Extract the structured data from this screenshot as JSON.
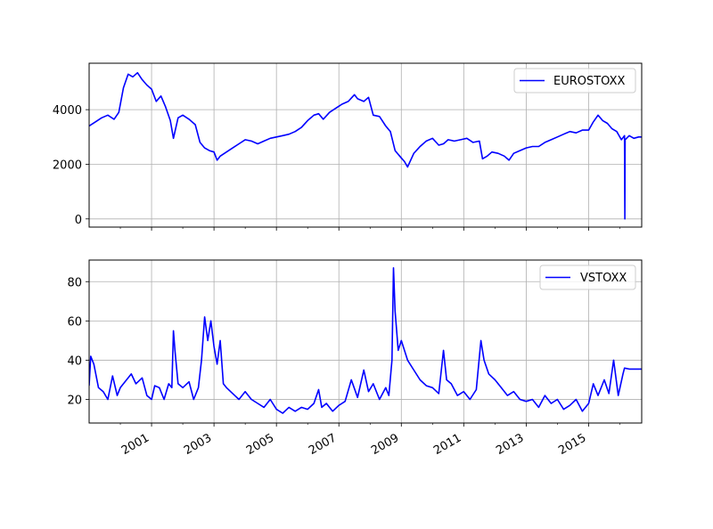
{
  "chart_data": [
    {
      "type": "line",
      "title": "",
      "xlabel": "",
      "ylabel": "",
      "legend": [
        "EUROSTOXX"
      ],
      "legend_position": "upper right",
      "grid": true,
      "line_color": "#0000ff",
      "ylim": [
        -300,
        5700
      ],
      "xlim": [
        1999.0,
        2016.7
      ],
      "yticks": [
        0,
        2000,
        4000
      ],
      "ytick_labels": [
        "0",
        "2000",
        "4000"
      ],
      "series": [
        {
          "name": "EUROSTOXX",
          "x": [
            1999.0,
            1999.2,
            1999.4,
            1999.6,
            1999.8,
            1999.95,
            2000.1,
            2000.25,
            2000.4,
            2000.55,
            2000.7,
            2000.85,
            2001.0,
            2001.15,
            2001.3,
            2001.45,
            2001.6,
            2001.7,
            2001.85,
            2002.0,
            2002.2,
            2002.4,
            2002.55,
            2002.7,
            2002.85,
            2003.0,
            2003.1,
            2003.2,
            2003.4,
            2003.6,
            2003.8,
            2004.0,
            2004.2,
            2004.4,
            2004.6,
            2004.8,
            2005.0,
            2005.2,
            2005.4,
            2005.6,
            2005.8,
            2006.0,
            2006.2,
            2006.35,
            2006.5,
            2006.7,
            2006.9,
            2007.1,
            2007.3,
            2007.5,
            2007.6,
            2007.8,
            2007.95,
            2008.1,
            2008.3,
            2008.5,
            2008.65,
            2008.8,
            2008.95,
            2009.1,
            2009.2,
            2009.4,
            2009.6,
            2009.8,
            2010.0,
            2010.2,
            2010.35,
            2010.5,
            2010.7,
            2010.9,
            2011.1,
            2011.3,
            2011.5,
            2011.6,
            2011.75,
            2011.9,
            2012.1,
            2012.3,
            2012.45,
            2012.6,
            2012.8,
            2013.0,
            2013.2,
            2013.4,
            2013.6,
            2013.8,
            2014.0,
            2014.2,
            2014.4,
            2014.6,
            2014.8,
            2015.0,
            2015.15,
            2015.3,
            2015.45,
            2015.6,
            2015.75,
            2015.9,
            2016.05,
            2016.15,
            2016.16,
            2016.17,
            2016.3,
            2016.45,
            2016.6,
            2016.7
          ],
          "y": [
            3400,
            3550,
            3700,
            3800,
            3650,
            3900,
            4800,
            5300,
            5200,
            5350,
            5100,
            4900,
            4750,
            4300,
            4500,
            4100,
            3600,
            2950,
            3700,
            3800,
            3650,
            3450,
            2800,
            2600,
            2500,
            2450,
            2150,
            2300,
            2450,
            2600,
            2750,
            2900,
            2850,
            2750,
            2850,
            2950,
            3000,
            3050,
            3100,
            3200,
            3350,
            3600,
            3800,
            3850,
            3650,
            3900,
            4050,
            4200,
            4300,
            4550,
            4400,
            4300,
            4450,
            3800,
            3750,
            3400,
            3200,
            2500,
            2300,
            2100,
            1900,
            2400,
            2650,
            2850,
            2950,
            2700,
            2750,
            2900,
            2850,
            2900,
            2950,
            2800,
            2850,
            2200,
            2300,
            2450,
            2400,
            2300,
            2150,
            2400,
            2500,
            2600,
            2650,
            2650,
            2800,
            2900,
            3000,
            3100,
            3200,
            3150,
            3250,
            3250,
            3550,
            3800,
            3600,
            3500,
            3300,
            3200,
            2900,
            3050,
            0,
            2900,
            3050,
            2950,
            3000,
            3000
          ]
        }
      ]
    },
    {
      "type": "line",
      "title": "",
      "xlabel": "",
      "ylabel": "",
      "legend": [
        "VSTOXX"
      ],
      "legend_position": "upper right",
      "grid": true,
      "line_color": "#0000ff",
      "ylim": [
        8,
        91
      ],
      "xlim": [
        1999.0,
        2016.7
      ],
      "yticks": [
        20,
        40,
        60,
        80
      ],
      "ytick_labels": [
        "20",
        "40",
        "60",
        "80"
      ],
      "xticks": [
        2001,
        2003,
        2005,
        2007,
        2009,
        2011,
        2013,
        2015
      ],
      "xtick_labels": [
        "2001",
        "2003",
        "2005",
        "2007",
        "2009",
        "2011",
        "2013",
        "2015"
      ],
      "series": [
        {
          "name": "VSTOXX",
          "x": [
            1999.0,
            1999.05,
            1999.15,
            1999.3,
            1999.45,
            1999.6,
            1999.75,
            1999.9,
            2000.0,
            2000.2,
            2000.35,
            2000.5,
            2000.7,
            2000.85,
            2001.0,
            2001.1,
            2001.25,
            2001.4,
            2001.55,
            2001.65,
            2001.7,
            2001.75,
            2001.85,
            2002.0,
            2002.2,
            2002.35,
            2002.5,
            2002.6,
            2002.7,
            2002.8,
            2002.9,
            2003.0,
            2003.1,
            2003.2,
            2003.3,
            2003.4,
            2003.6,
            2003.8,
            2004.0,
            2004.2,
            2004.4,
            2004.6,
            2004.8,
            2005.0,
            2005.2,
            2005.4,
            2005.6,
            2005.8,
            2006.0,
            2006.2,
            2006.35,
            2006.45,
            2006.6,
            2006.8,
            2007.0,
            2007.2,
            2007.4,
            2007.6,
            2007.8,
            2007.95,
            2008.1,
            2008.3,
            2008.5,
            2008.6,
            2008.7,
            2008.75,
            2008.8,
            2008.9,
            2009.0,
            2009.2,
            2009.4,
            2009.6,
            2009.8,
            2010.0,
            2010.2,
            2010.35,
            2010.45,
            2010.6,
            2010.8,
            2011.0,
            2011.2,
            2011.4,
            2011.55,
            2011.65,
            2011.8,
            2012.0,
            2012.2,
            2012.4,
            2012.6,
            2012.8,
            2013.0,
            2013.2,
            2013.4,
            2013.6,
            2013.8,
            2014.0,
            2014.2,
            2014.4,
            2014.6,
            2014.8,
            2015.0,
            2015.15,
            2015.3,
            2015.5,
            2015.65,
            2015.8,
            2015.95,
            2016.1,
            2016.15,
            2016.3,
            2016.5,
            2016.7
          ],
          "y": [
            27,
            42,
            38,
            26,
            24,
            20,
            32,
            22,
            26,
            30,
            33,
            28,
            31,
            22,
            20,
            27,
            26,
            20,
            28,
            26,
            55,
            45,
            28,
            26,
            29,
            20,
            26,
            40,
            62,
            50,
            60,
            47,
            38,
            50,
            28,
            26,
            23,
            20,
            24,
            20,
            18,
            16,
            20,
            15,
            13,
            16,
            14,
            16,
            15,
            18,
            25,
            16,
            18,
            14,
            17,
            19,
            30,
            21,
            35,
            24,
            28,
            20,
            26,
            22,
            40,
            87,
            65,
            45,
            50,
            40,
            35,
            30,
            27,
            26,
            23,
            45,
            30,
            28,
            22,
            24,
            20,
            25,
            50,
            40,
            33,
            30,
            26,
            22,
            24,
            20,
            19,
            20,
            16,
            22,
            18,
            20,
            15,
            17,
            20,
            14,
            18,
            28,
            22,
            30,
            23,
            40,
            22,
            33,
            36,
            35.5,
            35.5,
            35.5
          ]
        }
      ]
    }
  ]
}
